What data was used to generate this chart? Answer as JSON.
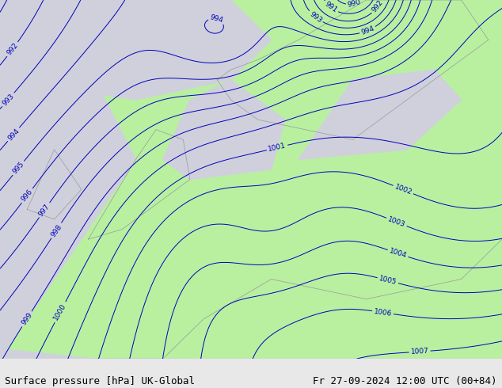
{
  "title_left": "Surface pressure [hPa] UK-Global",
  "title_right": "Fr 27-09-2024 12:00 UTC (00+84)",
  "land_color": "#b8f0a0",
  "sea_color": "#d0d0dc",
  "contour_color": "#0000bb",
  "border_color": "#999999",
  "label_color": "#0000bb",
  "bottom_bar_color": "#e8e8e8",
  "font_size_title": 9,
  "font_size_labels": 6.5,
  "figsize": [
    6.34,
    4.9
  ],
  "dpi": 100,
  "lon_min": -12,
  "lon_max": 25,
  "lat_min": 44,
  "lat_max": 62
}
